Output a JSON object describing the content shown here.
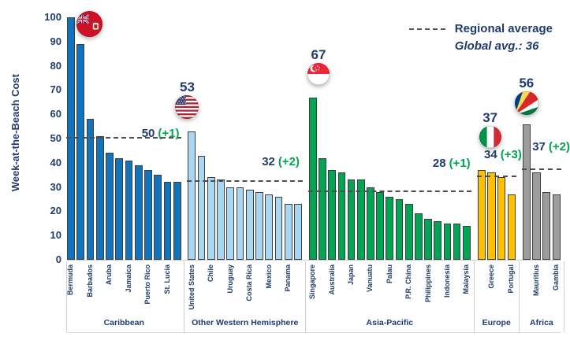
{
  "chart_data": {
    "type": "bar",
    "title": "",
    "ylabel": "Week-at-the-Beach Cost",
    "ylim": [
      0,
      100
    ],
    "yticks": [
      0,
      10,
      20,
      30,
      40,
      50,
      60,
      70,
      80,
      90,
      100
    ],
    "grid": false,
    "legend": {
      "dash_label": "Regional average",
      "global_note": "Global avg.: 36",
      "position": "top-right"
    },
    "global_average": 36,
    "colors": {
      "text_navy": "#1F3C6D",
      "delta_green": "#00A651",
      "bar_outline": "#3E3E3E",
      "dash_line": "#4d4d4d"
    },
    "regions": [
      {
        "name": "Caribbean",
        "color": "#1173BC",
        "average": 50,
        "average_annotation": {
          "value": "50",
          "delta": "(+1)"
        },
        "flag": {
          "country": "Bermuda",
          "value_label": ""
        },
        "bars": [
          {
            "label": "Bermuda",
            "value": 100
          },
          {
            "label": "",
            "value": 89
          },
          {
            "label": "Barbados",
            "value": 58
          },
          {
            "label": "",
            "value": 51
          },
          {
            "label": "Aruba",
            "value": 44
          },
          {
            "label": "",
            "value": 42
          },
          {
            "label": "Jamaica",
            "value": 41
          },
          {
            "label": "",
            "value": 39
          },
          {
            "label": "Puerto Rico",
            "value": 37
          },
          {
            "label": "",
            "value": 35
          },
          {
            "label": "St. Lucia",
            "value": 32
          },
          {
            "label": "",
            "value": 32
          }
        ]
      },
      {
        "name": "Other Western Hemisphere",
        "color": "#A9D7F1",
        "average": 32,
        "average_annotation": {
          "value": "32",
          "delta": "(+2)"
        },
        "flag": {
          "country": "United States",
          "value_label": "53"
        },
        "bars": [
          {
            "label": "United States",
            "value": 53
          },
          {
            "label": "",
            "value": 43
          },
          {
            "label": "Chile",
            "value": 34
          },
          {
            "label": "",
            "value": 33
          },
          {
            "label": "Uruguay",
            "value": 30
          },
          {
            "label": "",
            "value": 30
          },
          {
            "label": "Costa Rica",
            "value": 29
          },
          {
            "label": "",
            "value": 28
          },
          {
            "label": "Mexico",
            "value": 27
          },
          {
            "label": "",
            "value": 26
          },
          {
            "label": "Panama",
            "value": 23
          },
          {
            "label": "",
            "value": 23
          }
        ]
      },
      {
        "name": "Asia-Pacific",
        "color": "#00A453",
        "average": 28,
        "average_annotation": {
          "value": "28",
          "delta": "(+1)"
        },
        "flag": {
          "country": "Singapore",
          "value_label": "67"
        },
        "bars": [
          {
            "label": "Singapore",
            "value": 67
          },
          {
            "label": "",
            "value": 42
          },
          {
            "label": "Australia",
            "value": 37
          },
          {
            "label": "",
            "value": 36
          },
          {
            "label": "Japan",
            "value": 33
          },
          {
            "label": "",
            "value": 33
          },
          {
            "label": "Vanuatu",
            "value": 30
          },
          {
            "label": "",
            "value": 28
          },
          {
            "label": "Palau",
            "value": 26
          },
          {
            "label": "",
            "value": 25
          },
          {
            "label": "P.R. China",
            "value": 23
          },
          {
            "label": "",
            "value": 19
          },
          {
            "label": "Philippines",
            "value": 17
          },
          {
            "label": "",
            "value": 16
          },
          {
            "label": "Indonesia",
            "value": 15
          },
          {
            "label": "",
            "value": 15
          },
          {
            "label": "Malaysia",
            "value": 14
          }
        ]
      },
      {
        "name": "Europe",
        "color": "#FFC000",
        "average": 34,
        "average_annotation": {
          "value": "34",
          "delta": "(+3)"
        },
        "flag": {
          "country": "Italy",
          "value_label": "37"
        },
        "bars": [
          {
            "label": "",
            "value": 37
          },
          {
            "label": "Greece",
            "value": 36
          },
          {
            "label": "",
            "value": 34
          },
          {
            "label": "Portugal",
            "value": 27
          }
        ]
      },
      {
        "name": "Africa",
        "color": "#9D9D9C",
        "average": 37,
        "average_annotation": {
          "value": "37",
          "delta": "(+2)"
        },
        "flag": {
          "country": "Seychelles",
          "value_label": "56"
        },
        "bars": [
          {
            "label": "",
            "value": 56
          },
          {
            "label": "Mauritius",
            "value": 36
          },
          {
            "label": "",
            "value": 28
          },
          {
            "label": "Gambia",
            "value": 27
          }
        ]
      }
    ]
  }
}
